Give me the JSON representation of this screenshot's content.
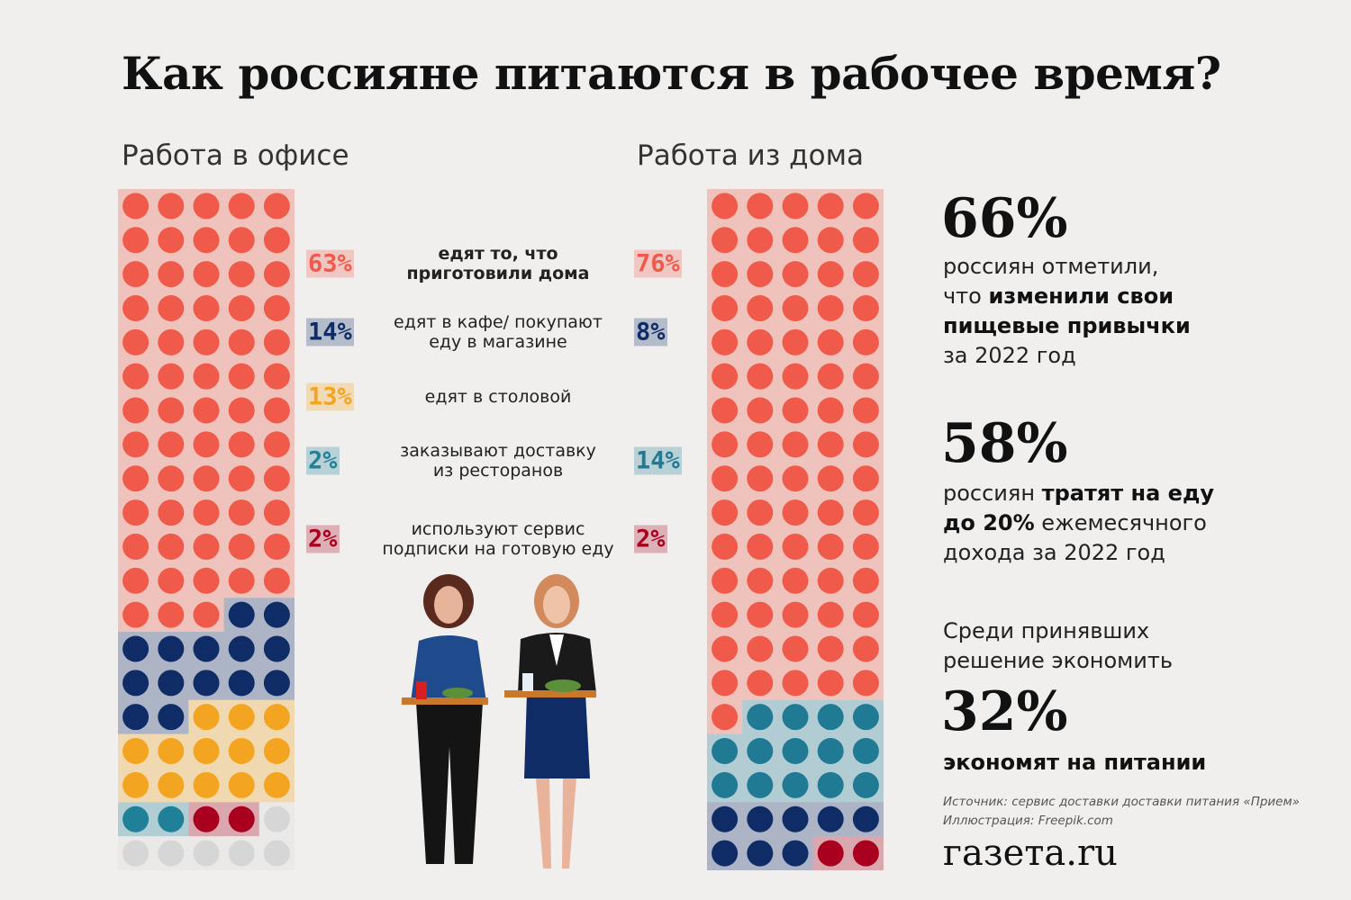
{
  "title": "Как россияне питаются в рабочее время?",
  "chart_data": [
    {
      "type": "waffle",
      "title": "Работа в офисе",
      "categories": [
        "едят то, что\nприготовили дома",
        "едят в кафе/ покупают\nеду в магазине",
        "едят в столовой",
        "заказывают доставку\nиз ресторанов",
        "используют сервис\nподписки на готовую еду"
      ],
      "values": [
        63,
        14,
        13,
        2,
        2
      ],
      "value_labels": [
        "63%",
        "14%",
        "13%",
        "2%",
        "2%"
      ],
      "colors": [
        "#ef5a4a",
        "#0f2c66",
        "#f3a521",
        "#1f8098",
        "#a8001e"
      ]
    },
    {
      "type": "waffle",
      "title": "Работа из дома",
      "categories": [
        "едят то, что\nприготовили дома",
        "заказывают доставку\nиз ресторанов",
        "едят в кафе/ покупают\nеду в магазине",
        "используют сервис\nподписки на готовую еду"
      ],
      "values": [
        76,
        14,
        8,
        2
      ],
      "value_labels": [
        "76%",
        "14%",
        "8%",
        "2%"
      ],
      "colors": [
        "#ef5a4a",
        "#217a94",
        "#0f2c66",
        "#a8001e"
      ]
    }
  ],
  "stats": [
    {
      "number": "66%",
      "parts": [
        "россиян отметили,\nчто ",
        "изменили свои\nпищевые привычки",
        "\nза 2022 год"
      ]
    },
    {
      "number": "58%",
      "parts": [
        "россиян ",
        "тратят на еду\nдо 20%",
        " ежемесячного\nдохода за 2022 год"
      ]
    },
    {
      "intro": "Среди принявших\nрешение экономить",
      "number": "32%",
      "parts": [
        "",
        "экономят на питании"
      ]
    }
  ],
  "source": "Источник: сервис доставки доставки питания «Прием»",
  "illustration": "Иллюстрация: Freepik.com",
  "logo": "газета.ru"
}
